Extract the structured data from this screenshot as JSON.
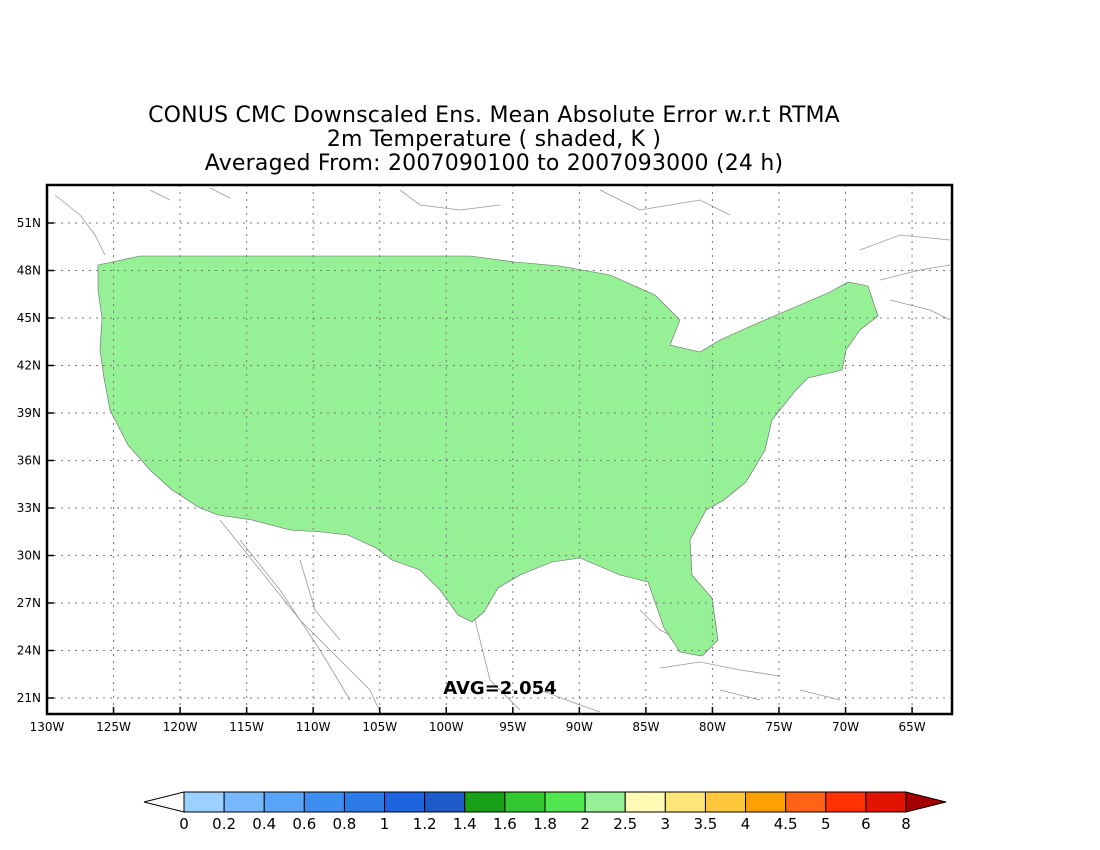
{
  "title": {
    "line1": "CONUS CMC Downscaled Ens. Mean Absolute Error w.r.t RTMA",
    "line2": "2m Temperature ( shaded, K )",
    "line3": "Averaged From: 2007090100 to 2007093000 (24 h)"
  },
  "map": {
    "lat_ticks": [
      "51N",
      "48N",
      "45N",
      "42N",
      "39N",
      "36N",
      "33N",
      "30N",
      "27N",
      "24N",
      "21N"
    ],
    "lon_ticks": [
      "130W",
      "125W",
      "120W",
      "115W",
      "110W",
      "105W",
      "100W",
      "95W",
      "90W",
      "85W",
      "80W",
      "75W",
      "70W",
      "65W"
    ],
    "lat_values": [
      51,
      48,
      45,
      42,
      39,
      36,
      33,
      30,
      27,
      24,
      21
    ],
    "lon_values": [
      -130,
      -125,
      -120,
      -115,
      -110,
      -105,
      -100,
      -95,
      -90,
      -85,
      -80,
      -75,
      -70,
      -65
    ],
    "lat_range": [
      19.5,
      52.5
    ],
    "lon_range": [
      -130,
      -62
    ],
    "avg_text": "AVG=2.054",
    "grid": true
  },
  "colorbar": {
    "labels": [
      "0",
      "0.2",
      "0.4",
      "0.6",
      "0.8",
      "1",
      "1.2",
      "1.4",
      "1.6",
      "1.8",
      "2",
      "2.5",
      "3",
      "3.5",
      "4",
      "4.5",
      "5",
      "6",
      "8"
    ],
    "colors": [
      "#ffffff",
      "#9cd0ff",
      "#78b8ff",
      "#58a4f8",
      "#3c8ef0",
      "#2c7ae8",
      "#1e64e0",
      "#1e5ac8",
      "#18a018",
      "#32c832",
      "#50e650",
      "#96f096",
      "#fffab4",
      "#ffe678",
      "#ffc83c",
      "#ffa000",
      "#ff6414",
      "#ff3200",
      "#e11400",
      "#a50000"
    ]
  }
}
